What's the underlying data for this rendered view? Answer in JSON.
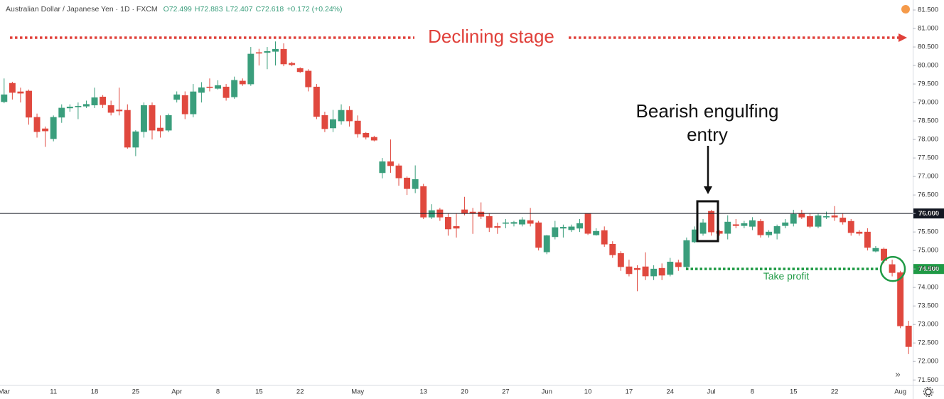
{
  "chart_data": {
    "type": "candlestick",
    "symbol": "Australian Dollar / Japanese Yen · 1D · FXCM",
    "legend_values": [
      "O72.499",
      "H72.883",
      "L72.407",
      "C72.618",
      "+0.172 (+0.24%)"
    ],
    "annotations": {
      "stage": "Declining  stage",
      "entry": [
        "Bearish engulfing",
        "entry"
      ],
      "target": "Take profit"
    },
    "categories": [
      "Mar",
      null,
      null,
      null,
      null,
      null,
      "11",
      null,
      null,
      null,
      null,
      "18",
      null,
      null,
      null,
      null,
      "25",
      null,
      null,
      null,
      null,
      "Apr",
      null,
      null,
      null,
      null,
      "8",
      null,
      null,
      null,
      null,
      "15",
      null,
      null,
      null,
      null,
      "22",
      null,
      null,
      null,
      null,
      null,
      null,
      "May",
      null,
      null,
      null,
      null,
      null,
      null,
      null,
      "13",
      null,
      null,
      null,
      null,
      "20",
      null,
      null,
      null,
      null,
      "27",
      null,
      null,
      null,
      null,
      "Jun",
      null,
      null,
      null,
      null,
      "10",
      null,
      null,
      null,
      null,
      "17",
      null,
      null,
      null,
      null,
      "24",
      null,
      null,
      null,
      null,
      "Jul",
      null,
      null,
      null,
      null,
      "8",
      null,
      null,
      null,
      null,
      "15",
      null,
      null,
      null,
      null,
      "22",
      null,
      null,
      null,
      null,
      null,
      null,
      null,
      "Aug",
      null
    ],
    "open": [
      79.02,
      79.52,
      79.29,
      79.31,
      78.6,
      78.29,
      78.02,
      78.6,
      78.85,
      78.88,
      78.9,
      78.93,
      79.15,
      78.92,
      78.8,
      78.79,
      77.79,
      78.21,
      78.92,
      78.31,
      78.25,
      79.08,
      79.19,
      78.69,
      79.27,
      79.42,
      79.38,
      79.42,
      79.15,
      79.58,
      79.5,
      80.35,
      80.35,
      80.38,
      80.44,
      80.06,
      79.92,
      79.85,
      79.42,
      78.65,
      78.31,
      78.5,
      78.79,
      78.5,
      78.17,
      78.06,
      77.1,
      77.4,
      77.29,
      76.96,
      76.67,
      76.73,
      75.9,
      76.1,
      75.9,
      75.65,
      76.1,
      76.04,
      76.04,
      75.92,
      75.65,
      75.73,
      75.73,
      75.71,
      75.81,
      75.75,
      74.96,
      75.37,
      75.6,
      75.56,
      75.6,
      76.0,
      75.42,
      75.54,
      75.17,
      74.92,
      74.56,
      74.52,
      74.56,
      74.31,
      74.52,
      74.35,
      74.67,
      74.56,
      75.23,
      75.46,
      76.06,
      75.52,
      75.46,
      75.7,
      75.67,
      75.65,
      75.79,
      75.42,
      75.46,
      75.67,
      75.73,
      76.0,
      75.92,
      75.65,
      75.9,
      75.94,
      75.88,
      75.79,
      75.5,
      75.5,
      74.98,
      75.04,
      74.62,
      74.4,
      72.96
    ],
    "high": [
      79.65,
      79.56,
      79.4,
      79.35,
      78.7,
      78.35,
      78.65,
      78.95,
      78.95,
      79.0,
      79.05,
      79.4,
      79.2,
      79.05,
      79.4,
      78.95,
      78.25,
      79.0,
      79.0,
      78.65,
      78.7,
      79.3,
      79.3,
      79.5,
      79.55,
      79.65,
      79.6,
      79.5,
      79.7,
      79.65,
      80.5,
      80.45,
      80.5,
      80.65,
      80.6,
      80.1,
      79.95,
      79.9,
      79.5,
      78.75,
      78.8,
      78.95,
      78.9,
      78.65,
      78.2,
      78.1,
      77.5,
      78.0,
      77.35,
      77.0,
      77.3,
      76.8,
      76.25,
      76.15,
      76.0,
      76.0,
      76.45,
      76.15,
      76.3,
      76.0,
      75.75,
      75.85,
      75.8,
      75.9,
      76.15,
      75.8,
      75.42,
      75.8,
      75.7,
      75.7,
      75.85,
      76.0,
      75.6,
      75.65,
      75.25,
      74.98,
      74.75,
      74.6,
      74.95,
      74.6,
      74.65,
      74.8,
      74.75,
      75.35,
      75.65,
      75.85,
      76.1,
      75.55,
      75.95,
      75.85,
      75.8,
      75.9,
      75.85,
      75.55,
      75.7,
      75.85,
      76.1,
      76.1,
      76.0,
      76.0,
      76.05,
      76.2,
      76.0,
      75.85,
      75.55,
      75.6,
      75.12,
      75.08,
      74.75,
      74.45,
      73.1
    ],
    "low": [
      78.98,
      79.08,
      79.0,
      78.4,
      78.05,
      77.8,
      77.95,
      78.45,
      78.75,
      78.55,
      78.85,
      78.85,
      78.85,
      78.65,
      78.65,
      77.75,
      77.55,
      78.05,
      78.0,
      78.05,
      78.2,
      79.0,
      78.55,
      78.6,
      79.0,
      79.3,
      79.35,
      79.05,
      79.1,
      79.45,
      79.45,
      80.0,
      79.9,
      80.0,
      79.98,
      79.98,
      79.8,
      79.3,
      78.55,
      78.2,
      78.2,
      78.4,
      78.35,
      78.05,
      78.0,
      77.95,
      76.95,
      77.1,
      76.75,
      76.5,
      76.55,
      75.85,
      75.85,
      75.8,
      75.4,
      75.35,
      75.95,
      75.45,
      75.85,
      75.5,
      75.45,
      75.6,
      75.65,
      75.65,
      75.65,
      75.0,
      74.9,
      75.3,
      75.35,
      75.5,
      75.5,
      75.42,
      75.4,
      75.1,
      74.8,
      74.45,
      74.3,
      73.9,
      74.2,
      74.2,
      74.2,
      74.3,
      74.45,
      74.5,
      75.2,
      75.4,
      75.4,
      75.4,
      75.3,
      75.6,
      75.6,
      75.55,
      75.35,
      75.35,
      75.3,
      75.6,
      75.65,
      75.85,
      75.6,
      75.6,
      75.85,
      75.8,
      75.7,
      75.4,
      75.4,
      75.0,
      74.95,
      74.65,
      74.3,
      72.9,
      72.2
    ],
    "close": [
      79.21,
      79.27,
      79.25,
      78.6,
      78.21,
      78.23,
      78.6,
      78.85,
      78.88,
      78.9,
      78.95,
      79.13,
      78.94,
      78.73,
      78.77,
      77.79,
      78.21,
      78.92,
      78.25,
      78.23,
      78.65,
      79.21,
      78.69,
      79.29,
      79.4,
      79.4,
      79.46,
      79.13,
      79.6,
      79.5,
      80.31,
      80.33,
      80.38,
      80.44,
      80.04,
      80.02,
      79.83,
      79.42,
      78.62,
      78.29,
      78.54,
      78.79,
      78.5,
      78.15,
      78.06,
      77.98,
      77.4,
      77.29,
      76.96,
      76.67,
      76.92,
      75.9,
      76.08,
      75.9,
      75.58,
      75.6,
      76.0,
      76.0,
      75.92,
      75.62,
      75.62,
      75.75,
      75.76,
      75.83,
      75.73,
      75.08,
      75.4,
      75.62,
      75.63,
      75.64,
      75.73,
      75.46,
      75.52,
      75.17,
      74.88,
      74.56,
      74.37,
      74.48,
      74.31,
      74.5,
      74.33,
      74.69,
      74.56,
      75.27,
      75.56,
      75.75,
      75.5,
      75.46,
      75.77,
      75.67,
      75.73,
      75.81,
      75.42,
      75.5,
      75.65,
      75.75,
      75.98,
      75.9,
      75.65,
      75.94,
      75.92,
      75.9,
      75.77,
      75.48,
      75.46,
      75.08,
      75.06,
      74.73,
      74.4,
      72.96,
      72.4
    ],
    "up_color": "#3a9e7c",
    "down_color": "#e0483e",
    "ylim": [
      71.37,
      81.77
    ],
    "yticks": [
      {
        "value": 81.5,
        "label": "81.500"
      },
      {
        "value": 81,
        "label": "81.000"
      },
      {
        "value": 80.5,
        "label": "80.500"
      },
      {
        "value": 80,
        "label": "80.000"
      },
      {
        "value": 79.5,
        "label": "79.500"
      },
      {
        "value": 79,
        "label": "79.000"
      },
      {
        "value": 78.5,
        "label": "78.500"
      },
      {
        "value": 78,
        "label": "78.000"
      },
      {
        "value": 77.5,
        "label": "77.500"
      },
      {
        "value": 77,
        "label": "77.000"
      },
      {
        "value": 76.5,
        "label": "76.500"
      },
      {
        "value": 76,
        "label": "76.000"
      },
      {
        "value": 75.5,
        "label": "75.500"
      },
      {
        "value": 75,
        "label": "75.000"
      },
      {
        "value": 74.5,
        "label": "74.500"
      },
      {
        "value": 74,
        "label": "74.000"
      },
      {
        "value": 73.5,
        "label": "73.500"
      },
      {
        "value": 73,
        "label": "73.000"
      },
      {
        "value": 72.5,
        "label": "72.500"
      },
      {
        "value": 72,
        "label": "72.000"
      },
      {
        "value": 71.5,
        "label": "71.500"
      }
    ],
    "grid": false,
    "price_line": {
      "value": 76,
      "label": "76.000",
      "color": "#131722"
    },
    "target_line": {
      "value": 74.5,
      "label": "74.500",
      "color": "#1f9a45"
    }
  }
}
